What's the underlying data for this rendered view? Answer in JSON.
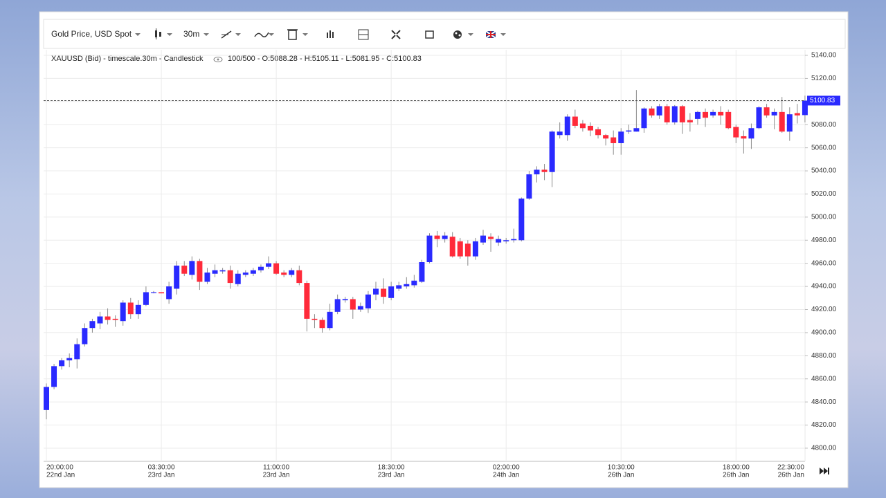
{
  "chart_data": {
    "type": "candlestick",
    "instrument": "Gold Price, USD Spot",
    "timescale": "30m",
    "info": "XAUUSD (Bid) - timescale.30m - Candlestick",
    "ohlc_text": "100/500 - O:5088.28 - H:5105.11 - L:5081.95 - C:5100.83",
    "current_price": 5100.83,
    "up_color": "#2a2aff",
    "down_color": "#ff2a3a",
    "wick_color": "#8a8a8a",
    "grid": true,
    "ylim": [
      4788.6,
      5144.8
    ],
    "yticks": [
      {
        "value": 4800,
        "label": "4800.00"
      },
      {
        "value": 4820,
        "label": "4820.00"
      },
      {
        "value": 4840,
        "label": "4840.00"
      },
      {
        "value": 4860,
        "label": "4860.00"
      },
      {
        "value": 4880,
        "label": "4880.00"
      },
      {
        "value": 4900,
        "label": "4900.00"
      },
      {
        "value": 4920,
        "label": "4920.00"
      },
      {
        "value": 4940,
        "label": "4940.00"
      },
      {
        "value": 4960,
        "label": "4960.00"
      },
      {
        "value": 4980,
        "label": "4980.00"
      },
      {
        "value": 5000,
        "label": "5000.00"
      },
      {
        "value": 5020,
        "label": "5020.00"
      },
      {
        "value": 5040,
        "label": "5040.00"
      },
      {
        "value": 5060,
        "label": "5060.00"
      },
      {
        "value": 5080,
        "label": "5080.00"
      },
      {
        "value": 5100,
        "label": "5100.00"
      },
      {
        "value": 5120,
        "label": "5120.00"
      },
      {
        "value": 5140,
        "label": "5140.00"
      }
    ],
    "categories": [
      {
        "time": "20:00:00",
        "date": "22nd Jan"
      },
      null,
      null,
      null,
      null,
      null,
      null,
      null,
      null,
      null,
      null,
      null,
      null,
      null,
      null,
      {
        "time": "03:30:00",
        "date": "23rd Jan"
      },
      null,
      null,
      null,
      null,
      null,
      null,
      null,
      null,
      null,
      null,
      null,
      null,
      null,
      null,
      {
        "time": "11:00:00",
        "date": "23rd Jan"
      },
      null,
      null,
      null,
      null,
      null,
      null,
      null,
      null,
      null,
      null,
      null,
      null,
      null,
      null,
      {
        "time": "18:30:00",
        "date": "23rd Jan"
      },
      null,
      null,
      null,
      null,
      null,
      null,
      null,
      null,
      null,
      null,
      null,
      null,
      null,
      null,
      {
        "time": "02:00:00",
        "date": "24th Jan"
      },
      null,
      null,
      null,
      null,
      null,
      null,
      null,
      null,
      null,
      null,
      null,
      null,
      null,
      null,
      {
        "time": "10:30:00",
        "date": "26th Jan"
      },
      null,
      null,
      null,
      null,
      null,
      null,
      null,
      null,
      null,
      null,
      null,
      null,
      null,
      null,
      {
        "time": "18:00:00",
        "date": "26th Jan"
      },
      null,
      null,
      null,
      null,
      null,
      null,
      null,
      null,
      {
        "time": "22:30:00",
        "date": "26th Jan"
      }
    ],
    "open": [
      4833,
      4853,
      4871,
      4876,
      4877,
      4890,
      4904,
      4908,
      4914,
      4912,
      4910,
      4926,
      4916,
      4924,
      4935,
      4935,
      4929,
      4938,
      4958,
      4950,
      4962,
      4944,
      4951,
      4953,
      4954,
      4942,
      4950,
      4951,
      4954,
      4957,
      4960,
      4952,
      4950,
      4954,
      4943,
      4912,
      4911,
      4904,
      4918,
      4928,
      4929,
      4920,
      4921,
      4933,
      4938,
      4930,
      4938,
      4940,
      4941,
      4944,
      4961,
      4984,
      4981,
      4983,
      4979,
      4977,
      4966,
      4978,
      4983,
      4978,
      4979,
      4980,
      4980,
      5016,
      5037,
      5041,
      5039,
      5071,
      5071,
      5087,
      5081,
      5079,
      5076,
      5071,
      5069,
      5064,
      5074,
      5074,
      5077,
      5094,
      5088,
      5096,
      5082,
      5096,
      5084,
      5085,
      5091,
      5088,
      5091,
      5091,
      5078,
      5070,
      5068,
      5077,
      5095,
      5088,
      5091,
      5074,
      5090,
      5088.28
    ],
    "high": [
      4856,
      4873,
      4878,
      4882,
      4895,
      4908,
      4912,
      4918,
      4921,
      4915,
      4928,
      4930,
      4928,
      4940,
      4936,
      4935,
      4944,
      4962,
      4962,
      4966,
      4964,
      4956,
      4959,
      4956,
      4958,
      4954,
      4954,
      4956,
      4959,
      4966,
      4962,
      4954,
      4956,
      4958,
      4945,
      4916,
      4913,
      4925,
      4933,
      4931,
      4931,
      4926,
      4936,
      4944,
      4947,
      4944,
      4944,
      4948,
      4950,
      4963,
      4986,
      4988,
      4987,
      4987,
      4982,
      4980,
      4982,
      4989,
      4986,
      4984,
      4982,
      4990,
      5017,
      5040,
      5044,
      5046,
      5075,
      5082,
      5089,
      5093,
      5084,
      5082,
      5078,
      5072,
      5075,
      5077,
      5080,
      5110,
      5095,
      5096,
      5098,
      5098,
      5097,
      5097,
      5090,
      5092,
      5094,
      5093,
      5096,
      5093,
      5080,
      5075,
      5081,
      5096,
      5098,
      5094,
      5104,
      5095,
      5098,
      5105.11
    ],
    "low": [
      4825,
      4851,
      4868,
      4870,
      4869,
      4888,
      4900,
      4903,
      4907,
      4905,
      4906,
      4912,
      4912,
      4923,
      4934,
      4934,
      4925,
      4933,
      4949,
      4946,
      4937,
      4942,
      4948,
      4951,
      4938,
      4940,
      4948,
      4949,
      4952,
      4955,
      4950,
      4948,
      4948,
      4941,
      4901,
      4904,
      4900,
      4902,
      4916,
      4926,
      4912,
      4918,
      4917,
      4928,
      4925,
      4928,
      4936,
      4938,
      4939,
      4943,
      4960,
      4974,
      4978,
      4965,
      4964,
      4958,
      4963,
      4976,
      4970,
      4975,
      4977,
      4978,
      4979,
      5015,
      5030,
      5032,
      5026,
      5068,
      5066,
      5077,
      5074,
      5070,
      5068,
      5062,
      5054,
      5054,
      5072,
      5074,
      5073,
      5086,
      5085,
      5080,
      5080,
      5072,
      5074,
      5080,
      5078,
      5086,
      5080,
      5076,
      5064,
      5055,
      5059,
      5076,
      5086,
      5076,
      5073,
      5066,
      5081,
      5081.95
    ],
    "close": [
      4853,
      4871,
      4876,
      4878,
      4890,
      4904,
      4910,
      4914,
      4911,
      4911,
      4926,
      4916,
      4924,
      4935,
      4935,
      4934,
      4940,
      4958,
      4951,
      4962,
      4944,
      4952,
      4954,
      4954,
      4943,
      4951,
      4952,
      4954,
      4957,
      4960,
      4951,
      4950,
      4954,
      4943,
      4912,
      4911,
      4904,
      4918,
      4929,
      4929,
      4920,
      4923,
      4933,
      4938,
      4931,
      4940,
      4941,
      4942,
      4945,
      4961,
      4984,
      4981,
      4984,
      4966,
      4966,
      4966,
      4979,
      4984,
      4981,
      4981,
      4980,
      4981,
      5016,
      5037,
      5041,
      5039,
      5074,
      5074,
      5087,
      5079,
      5077,
      5075,
      5071,
      5068,
      5064,
      5074,
      5075,
      5077,
      5094,
      5088,
      5096,
      5082,
      5096,
      5082,
      5082,
      5091,
      5086,
      5091,
      5088,
      5077,
      5069,
      5068,
      5077,
      5095,
      5088,
      5091,
      5074,
      5089,
      5088,
      5100.83
    ]
  }
}
